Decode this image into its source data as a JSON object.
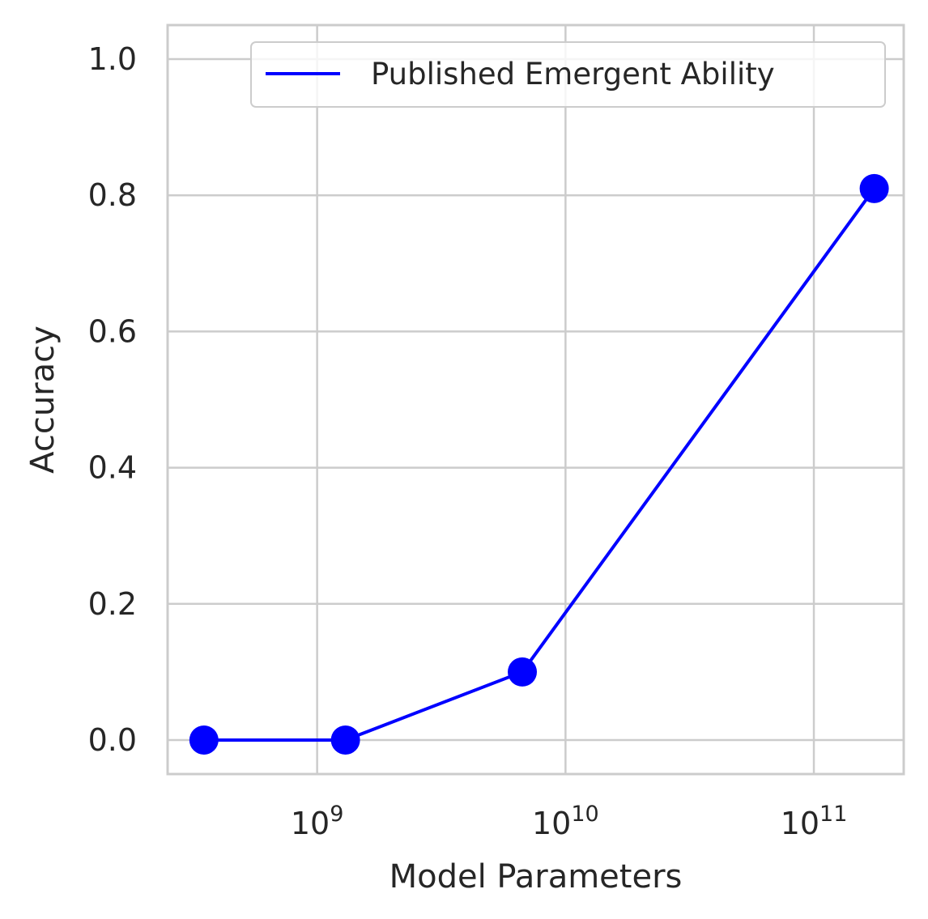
{
  "chart_data": {
    "type": "line",
    "title": "",
    "xlabel": "Model Parameters",
    "ylabel": "Accuracy",
    "xscale": "log",
    "xlim": [
      250000000,
      230000000000
    ],
    "ylim": [
      -0.05,
      1.05
    ],
    "grid": true,
    "legend_position": "top-right",
    "x_ticks": [
      {
        "value": 1000000000,
        "base": "10",
        "exp": "9"
      },
      {
        "value": 10000000000,
        "base": "10",
        "exp": "10"
      },
      {
        "value": 100000000000,
        "base": "10",
        "exp": "11"
      }
    ],
    "y_ticks": [
      {
        "value": 0.0,
        "label": "0.0"
      },
      {
        "value": 0.2,
        "label": "0.2"
      },
      {
        "value": 0.4,
        "label": "0.4"
      },
      {
        "value": 0.6,
        "label": "0.6"
      },
      {
        "value": 0.8,
        "label": "0.8"
      },
      {
        "value": 1.0,
        "label": "1.0"
      }
    ],
    "series": [
      {
        "name": "Published Emergent Ability",
        "color": "#0000ff",
        "x": [
          350000000,
          1300000000,
          6700000000,
          175000000000
        ],
        "y": [
          0.0,
          0.0,
          0.1,
          0.81
        ]
      }
    ]
  }
}
